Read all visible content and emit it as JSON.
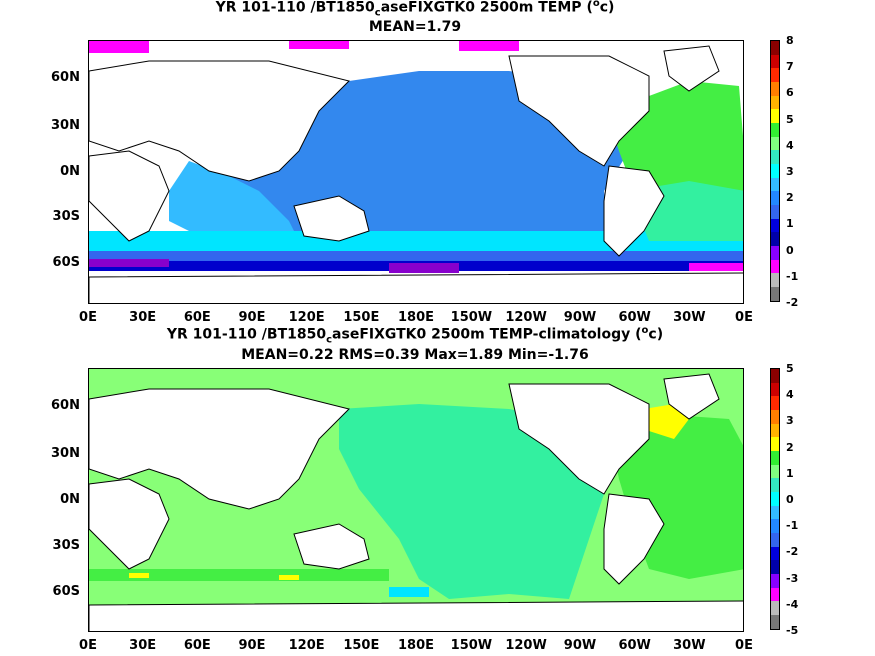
{
  "top": {
    "title_line1_a": "YR 101-110 /BT1850",
    "title_line1_sub": "c",
    "title_line1_b": "aseFIXGTK0 2500m TEMP (",
    "title_line1_sup": "o",
    "title_line1_c": "c)",
    "title_line2": "MEAN=1.79",
    "colorbar_labels": [
      "8",
      "7",
      "6",
      "5",
      "4",
      "3",
      "2",
      "1",
      "0",
      "-1",
      "-2"
    ],
    "colorbar_colors": [
      "#8b0000",
      "#cc0000",
      "#ff2a00",
      "#ff7f00",
      "#ffb300",
      "#ffff00",
      "#33ee33",
      "#80ff80",
      "#33e8c0",
      "#00ffff",
      "#33bbff",
      "#2288ff",
      "#3366ee",
      "#0000dd",
      "#0000aa",
      "#8800ff",
      "#ff00ff",
      "#bbbbbb",
      "#777777"
    ]
  },
  "bottom": {
    "title_line1_a": "YR 101-110 /BT1850",
    "title_line1_sub": "c",
    "title_line1_b": "aseFIXGTK0 2500m TEMP-climatology (",
    "title_line1_sup": "o",
    "title_line1_c": "c)",
    "title_line2": "MEAN=0.22   RMS=0.39   Max=1.89   Min=-1.76",
    "colorbar_labels": [
      "5",
      "4",
      "3",
      "2",
      "1",
      "0",
      "-1",
      "-2",
      "-3",
      "-4",
      "-5"
    ],
    "colorbar_colors": [
      "#8b0000",
      "#cc0000",
      "#ff2a00",
      "#ff7f00",
      "#ffb300",
      "#ffff00",
      "#33ee33",
      "#80ff80",
      "#33e8c0",
      "#00ffff",
      "#33bbff",
      "#2288ff",
      "#3366ee",
      "#0000dd",
      "#0000aa",
      "#8800ff",
      "#ff00ff",
      "#bbbbbb",
      "#777777"
    ]
  },
  "axes": {
    "lat_labels": [
      "60N",
      "30N",
      "0N",
      "30S",
      "60S"
    ],
    "lon_labels": [
      "0E",
      "30E",
      "60E",
      "90E",
      "120E",
      "150E",
      "180E",
      "150W",
      "120W",
      "90W",
      "60W",
      "30W",
      "0E"
    ]
  },
  "colors": {
    "deep_blue": "#3388ee",
    "mid_blue": "#33bbff",
    "cyan": "#00e5ff",
    "aqua_green": "#33f0a0",
    "green": "#44ee44",
    "light_green": "#88ff77",
    "dark_blue": "#0000cc",
    "purple": "#8800cc",
    "magenta": "#ff00ff",
    "yellow": "#ffff00",
    "land": "#ffffff"
  }
}
